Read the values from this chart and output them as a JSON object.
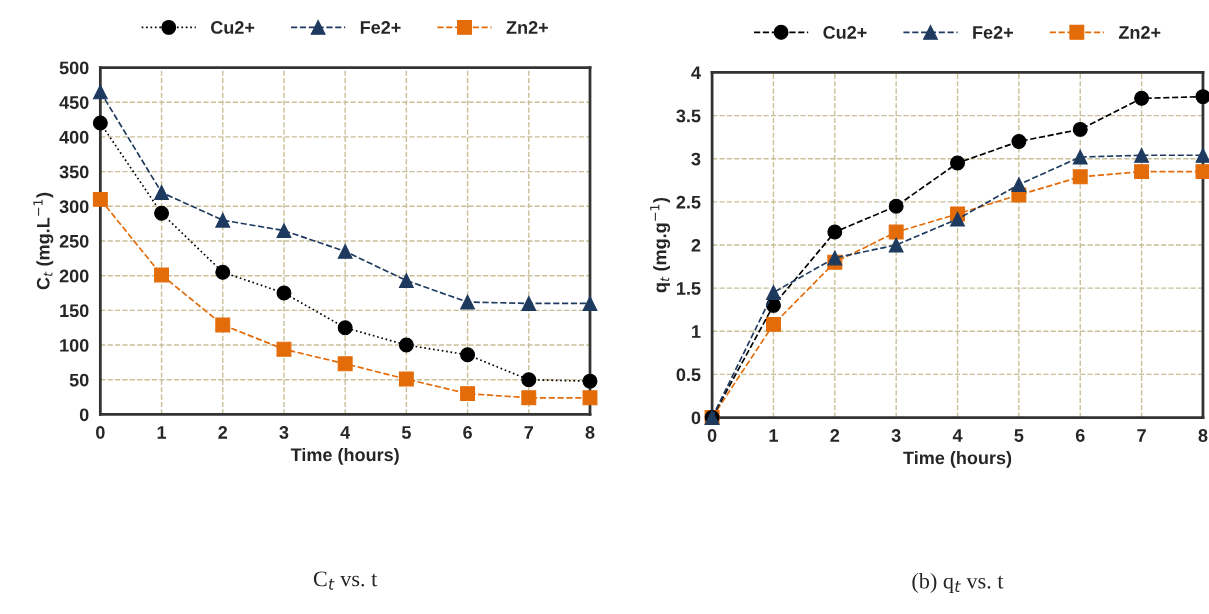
{
  "chart_data": [
    {
      "type": "line",
      "title": "C$_{t}$ vs. t",
      "xlabel": "Time (hours)",
      "ylabel": "C$_{t}$ (mg.L$^{−1}$)",
      "x": [
        0,
        1,
        2,
        3,
        4,
        5,
        6,
        7,
        8
      ],
      "series": [
        {
          "name": "Cu2+",
          "color": "#000000",
          "marker": "circle",
          "line_style": "dotted",
          "values": [
            420,
            290,
            205,
            175,
            125,
            100,
            86,
            50,
            48
          ]
        },
        {
          "name": "Fe2+",
          "color": "#1f3a5f",
          "marker": "triangle",
          "line_style": "dashed",
          "values": [
            465,
            320,
            280,
            265,
            235,
            193,
            162,
            160,
            160
          ]
        },
        {
          "name": "Zn2+",
          "color": "#e36c09",
          "marker": "square",
          "line_style": "dashed",
          "values": [
            310,
            201,
            129,
            94,
            73,
            51,
            30,
            24,
            24
          ]
        }
      ],
      "xlim": [
        0,
        8
      ],
      "xticks": [
        0,
        1,
        2,
        3,
        4,
        5,
        6,
        7,
        8
      ],
      "ylim": [
        0,
        500
      ],
      "yticks": [
        0,
        50,
        100,
        150,
        200,
        250,
        300,
        350,
        400,
        450,
        500
      ],
      "grid": true,
      "legend": "top"
    },
    {
      "type": "line",
      "title": "(b) q$_{t}$ vs. t",
      "xlabel": "Time (hours)",
      "ylabel": "q$_{t}$ (mg.g$^{−1}$)",
      "x": [
        0,
        1,
        2,
        3,
        4,
        5,
        6,
        7,
        8
      ],
      "series": [
        {
          "name": "Cu2+",
          "color": "#000000",
          "marker": "circle",
          "line_style": "dashed",
          "values": [
            0,
            1.3,
            2.15,
            2.45,
            2.95,
            3.2,
            3.34,
            3.7,
            3.72
          ]
        },
        {
          "name": "Fe2+",
          "color": "#1f3a5f",
          "marker": "triangle",
          "line_style": "dashed",
          "values": [
            0,
            1.45,
            1.85,
            2.0,
            2.3,
            2.7,
            3.02,
            3.04,
            3.04
          ]
        },
        {
          "name": "Zn2+",
          "color": "#e36c09",
          "marker": "square",
          "line_style": "dashed",
          "values": [
            0,
            1.08,
            1.8,
            2.15,
            2.36,
            2.58,
            2.79,
            2.85,
            2.85
          ]
        }
      ],
      "xlim": [
        0,
        8
      ],
      "xticks": [
        0,
        1,
        2,
        3,
        4,
        5,
        6,
        7,
        8
      ],
      "ylim": [
        0,
        4
      ],
      "yticks": [
        0,
        0.5,
        1,
        1.5,
        2,
        2.5,
        3,
        3.5,
        4
      ],
      "grid": true,
      "legend": "top"
    }
  ]
}
